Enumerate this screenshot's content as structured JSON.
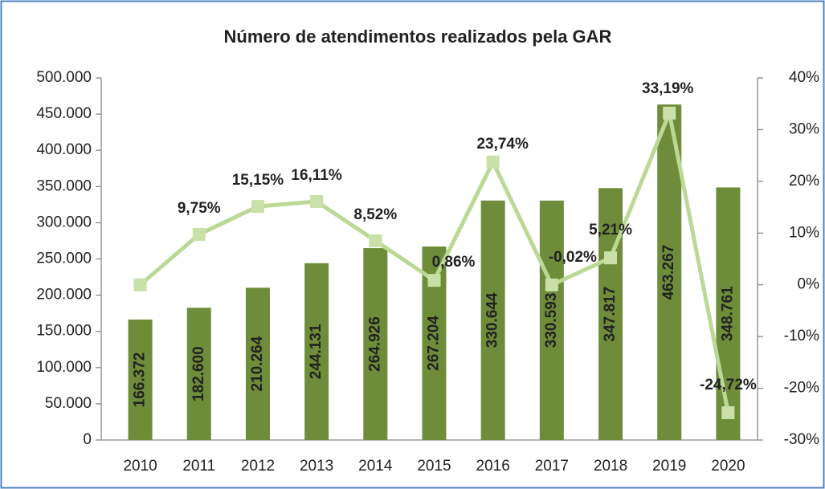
{
  "chart_data": {
    "type": "bar",
    "title": "Número de atendimentos realizados pela GAR",
    "categories": [
      "2010",
      "2011",
      "2012",
      "2013",
      "2014",
      "2015",
      "2016",
      "2017",
      "2018",
      "2019",
      "2020"
    ],
    "series": [
      {
        "type": "bar",
        "color": "#6e8c3a",
        "values": [
          166372,
          182600,
          210264,
          244131,
          264926,
          267204,
          330644,
          330593,
          347817,
          463267,
          348761
        ],
        "value_labels": [
          "166.372",
          "182.600",
          "210.264",
          "244.131",
          "264.926",
          "267.204",
          "330.644",
          "330.593",
          "347.817",
          "463.267",
          "348.761"
        ]
      },
      {
        "type": "line",
        "axis": "y2",
        "color": "#bcd896",
        "values": [
          0,
          9.75,
          15.15,
          16.11,
          8.52,
          0.86,
          23.74,
          -0.02,
          5.21,
          33.19,
          -24.72
        ],
        "value_labels": [
          null,
          "9,75%",
          "15,15%",
          "16,11%",
          "8,52%",
          "0,86%",
          "23,74%",
          "-0,02%",
          "5,21%",
          "33,19%",
          "-24,72%"
        ]
      }
    ],
    "ylim": [
      0,
      500000
    ],
    "yticks": [
      0,
      {
        "value": 50000,
        "label": "50.000"
      },
      {
        "value": 100000,
        "label": "100.000"
      },
      {
        "value": 150000,
        "label": "150.000"
      },
      {
        "value": 200000,
        "label": "200.000"
      },
      {
        "value": 250000,
        "label": "250.000"
      },
      {
        "value": 300000,
        "label": "300.000"
      },
      {
        "value": 350000,
        "label": "350.000"
      },
      {
        "value": 400000,
        "label": "400.000"
      },
      {
        "value": 450000,
        "label": "450.000"
      },
      {
        "value": 500000,
        "label": "500.000"
      }
    ],
    "y2lim": [
      -30,
      40
    ],
    "y2ticks": [
      {
        "value": -30,
        "label": "-30%"
      },
      {
        "value": -20,
        "label": "-20%"
      },
      {
        "value": -10,
        "label": "-10%"
      },
      {
        "value": 0,
        "label": "0%"
      },
      {
        "value": 10,
        "label": "10%"
      },
      {
        "value": 20,
        "label": "20%"
      },
      {
        "value": 30,
        "label": "30%"
      },
      {
        "value": 40,
        "label": "40%"
      }
    ],
    "grid": false
  }
}
